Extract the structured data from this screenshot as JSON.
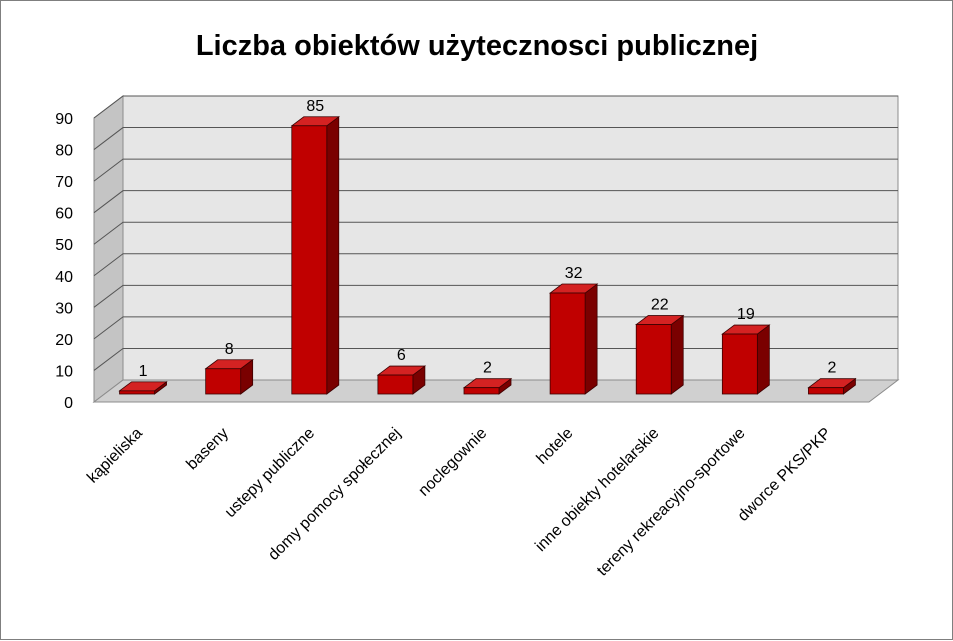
{
  "chart_data": {
    "type": "bar",
    "style": "3d-column",
    "title": "Liczba obiektów użytecznosci publicznej",
    "xlabel": "",
    "ylabel": "",
    "ylim": [
      0,
      90
    ],
    "yticks": [
      0,
      10,
      20,
      30,
      40,
      50,
      60,
      70,
      80,
      90
    ],
    "grid": true,
    "legend": "none",
    "categories": [
      "kąpieliska",
      "baseny",
      "ustepy publiczne",
      "domy pomocy społecznej",
      "noclegownie",
      "hotele",
      "inne obiekty hotelarskie",
      "tereny rekreacyjno-sportowe",
      "dworce PKS/PKP"
    ],
    "values": [
      1,
      8,
      85,
      6,
      2,
      32,
      22,
      19,
      2
    ],
    "data_labels": [
      "1",
      "8",
      "85",
      "6",
      "2",
      "32",
      "22",
      "19",
      "2"
    ],
    "colors": {
      "bar_front": "#c00000",
      "bar_top": "#d42222",
      "bar_side": "#7a0000",
      "wall": "#e6e6e6",
      "floor": "#d0d0d0",
      "gridline": "#555555"
    }
  }
}
